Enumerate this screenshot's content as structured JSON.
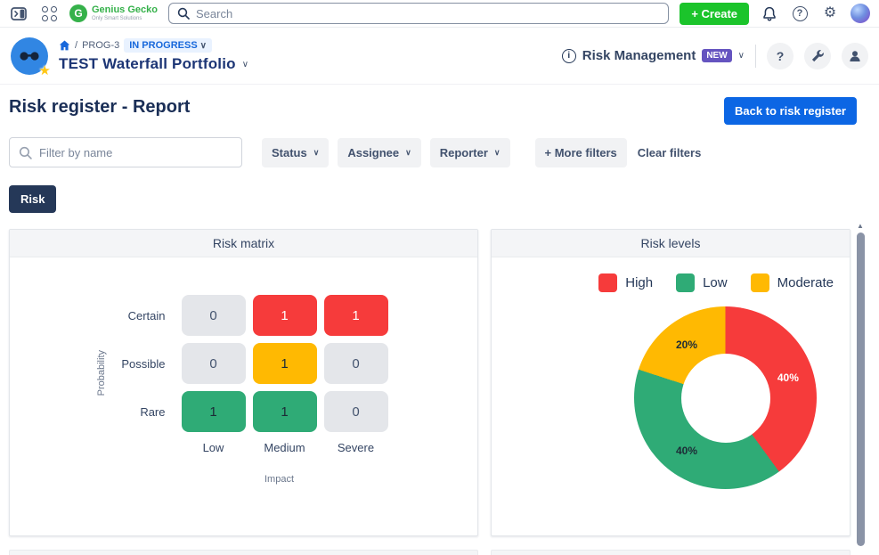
{
  "topbar": {
    "logo_name": "Genius Gecko",
    "logo_initial": "G",
    "logo_tagline": "Only Smart Solutions",
    "search_placeholder": "Search",
    "create_label": "+ Create",
    "help_glyph": "?",
    "gear_glyph": "⚙"
  },
  "project_header": {
    "breadcrumb_sep": "/",
    "project_key": "PROG-3",
    "status_badge": "IN PROGRESS",
    "status_chevron": "∨",
    "title": "TEST Waterfall Portfolio",
    "title_chevron": "∨",
    "info_glyph": "i",
    "app_label": "Risk Management",
    "new_badge": "NEW",
    "app_chevron": "∨",
    "help_glyph": "?"
  },
  "page": {
    "title": "Risk register - Report",
    "back_button": "Back to risk register"
  },
  "filters": {
    "name_placeholder": "Filter by name",
    "status_label": "Status",
    "assignee_label": "Assignee",
    "reporter_label": "Reporter",
    "chevron": "∨",
    "more_filters_label": "+ More filters",
    "clear_filters_label": "Clear filters"
  },
  "tabs": {
    "risk_label": "Risk"
  },
  "colors": {
    "red": "#f63b3b",
    "green": "#2fab76",
    "yellow": "#ffb902",
    "gray": "#e4e6ea",
    "accent_blue": "#0c66e4",
    "create_green": "#1bc42b",
    "navy": "#253858",
    "new_purple": "#6554c0"
  },
  "chart_data": [
    {
      "type": "heatmap",
      "title": "Risk matrix",
      "xlabel": "Impact",
      "ylabel": "Probability",
      "rows": [
        "Certain",
        "Possible",
        "Rare"
      ],
      "columns": [
        "Low",
        "Medium",
        "Severe"
      ],
      "values": [
        [
          0,
          1,
          1
        ],
        [
          0,
          1,
          0
        ],
        [
          1,
          1,
          0
        ]
      ],
      "cell_colors": [
        [
          "gray",
          "red",
          "red"
        ],
        [
          "gray",
          "yellow",
          "gray"
        ],
        [
          "green",
          "green",
          "gray"
        ]
      ],
      "color_map": {
        "gray": {
          "bg": "#e4e6ea",
          "fg": "#44546f"
        },
        "red": {
          "bg": "#f63b3b",
          "fg": "#ffffff"
        },
        "yellow": {
          "bg": "#ffb902",
          "fg": "#1d2b36"
        },
        "green": {
          "bg": "#2fab76",
          "fg": "#1d2b36"
        }
      }
    },
    {
      "type": "pie",
      "title": "Risk levels",
      "donut": true,
      "legend_position": "top-right",
      "slices": [
        {
          "name": "High",
          "value": 40,
          "label": "40%",
          "color": "#f63b3b",
          "label_color": "#ffffff"
        },
        {
          "name": "Low",
          "value": 40,
          "label": "40%",
          "color": "#2fab76",
          "label_color": "#1d2b36"
        },
        {
          "name": "Moderate",
          "value": 20,
          "label": "20%",
          "color": "#ffb902",
          "label_color": "#1d2b36"
        }
      ]
    }
  ]
}
